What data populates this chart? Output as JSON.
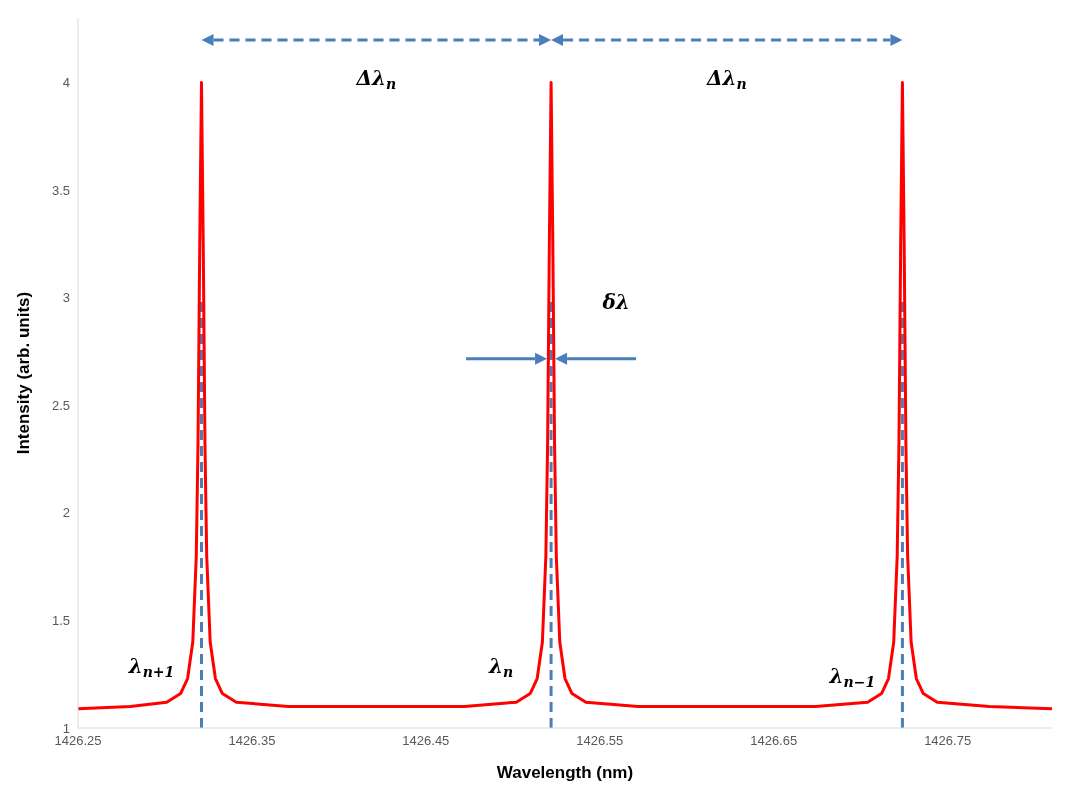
{
  "chart_data": {
    "type": "line",
    "xlabel": "Wavelength (nm)",
    "ylabel": "Intensity (arb. units)",
    "xlim": [
      1426.25,
      1426.81
    ],
    "xticks": [
      1426.25,
      1426.35,
      1426.45,
      1426.55,
      1426.65,
      1426.75
    ],
    "ylim": [
      1,
      4.3
    ],
    "yticks": [
      1,
      1.5,
      2,
      2.5,
      3,
      3.5,
      4
    ],
    "grid": false,
    "legend": false,
    "marker": "none",
    "line_style": "solid",
    "series": [
      {
        "color": "#ff0000",
        "x": [
          1426.25,
          1426.28,
          1426.301,
          1426.309,
          1426.313,
          1426.316,
          1426.318,
          1426.319,
          1426.32,
          1426.321,
          1426.322,
          1426.323,
          1426.324,
          1426.326,
          1426.329,
          1426.333,
          1426.341,
          1426.371,
          1426.42,
          1426.472,
          1426.502,
          1426.51,
          1426.514,
          1426.517,
          1426.519,
          1426.52,
          1426.521,
          1426.522,
          1426.523,
          1426.524,
          1426.525,
          1426.527,
          1426.53,
          1426.534,
          1426.542,
          1426.572,
          1426.62,
          1426.674,
          1426.704,
          1426.712,
          1426.716,
          1426.719,
          1426.721,
          1426.722,
          1426.723,
          1426.724,
          1426.725,
          1426.726,
          1426.727,
          1426.729,
          1426.732,
          1426.736,
          1426.744,
          1426.774,
          1426.81
        ],
        "values": [
          1.09,
          1.1,
          1.12,
          1.16,
          1.23,
          1.4,
          1.8,
          2.32,
          3.25,
          4.0,
          3.25,
          2.32,
          1.8,
          1.4,
          1.23,
          1.16,
          1.12,
          1.1,
          1.1,
          1.1,
          1.12,
          1.16,
          1.23,
          1.4,
          1.8,
          2.32,
          3.25,
          4.0,
          3.25,
          2.32,
          1.8,
          1.4,
          1.23,
          1.16,
          1.12,
          1.1,
          1.1,
          1.1,
          1.12,
          1.16,
          1.23,
          1.4,
          1.8,
          2.32,
          3.25,
          4.0,
          3.25,
          2.32,
          1.8,
          1.4,
          1.23,
          1.16,
          1.12,
          1.1,
          1.09
        ]
      }
    ],
    "ref_lines": [
      {
        "axis": "x",
        "value": 1426.321,
        "color": "#4a7ebb",
        "line_style": "dashed"
      },
      {
        "axis": "x",
        "value": 1426.522,
        "color": "#4a7ebb",
        "line_style": "dashed"
      },
      {
        "axis": "x",
        "value": 1426.724,
        "color": "#4a7ebb",
        "line_style": "dashed"
      }
    ],
    "annotations": [
      "Δλ$_{n}$",
      "Δλ$_{n}$",
      "δλ",
      "λ$_{n+1}$",
      "λ$_{n}$",
      "λ$_{n−1}$"
    ]
  }
}
